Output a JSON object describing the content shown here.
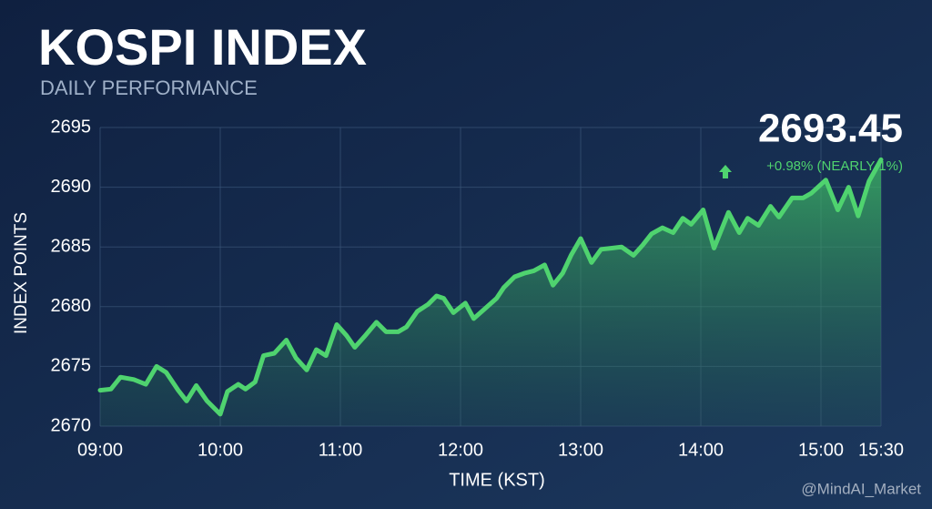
{
  "chart_data": {
    "type": "line",
    "title": "KOSPI INDEX",
    "subtitle": "DAILY PERFORMANCE",
    "y_label": "INDEX POINTS",
    "x_label": "TIME (KST)",
    "annotation": "2693.45",
    "change_label": "+0.98% (NEARLY 1%)",
    "watermark": "@MindAI_Market",
    "xlim": [
      9,
      15.5
    ],
    "xticks": [
      {
        "value": 9,
        "label": "09:00"
      },
      {
        "value": 10,
        "label": "10:00"
      },
      {
        "value": 11,
        "label": "11:00"
      },
      {
        "value": 12,
        "label": "12:00"
      },
      {
        "value": 13,
        "label": "13:00"
      },
      {
        "value": 14,
        "label": "14:00"
      },
      {
        "value": 15,
        "label": "15:00"
      },
      {
        "value": 15.5,
        "label": "15:30"
      }
    ],
    "ylim": [
      2670,
      2695
    ],
    "yticks": [
      2670,
      2675,
      2680,
      2685,
      2690,
      2695
    ],
    "grid": true,
    "series": [
      {
        "name": "KOSPI",
        "color": "#4fd36f",
        "x": [
          9.0,
          9.09,
          9.17,
          9.28,
          9.38,
          9.47,
          9.55,
          9.65,
          9.72,
          9.8,
          9.89,
          10.0,
          10.06,
          10.15,
          10.21,
          10.29,
          10.36,
          10.45,
          10.55,
          10.63,
          10.72,
          10.8,
          10.88,
          10.97,
          11.05,
          11.12,
          11.2,
          11.3,
          11.38,
          11.48,
          11.55,
          11.64,
          11.73,
          11.8,
          11.86,
          11.94,
          12.04,
          12.11,
          12.2,
          12.3,
          12.36,
          12.45,
          12.53,
          12.61,
          12.7,
          12.77,
          12.85,
          12.92,
          13.0,
          13.09,
          13.17,
          13.26,
          13.34,
          13.44,
          13.52,
          13.59,
          13.68,
          13.77,
          13.85,
          13.92,
          14.02,
          14.11,
          14.23,
          14.32,
          14.39,
          14.48,
          14.58,
          14.65,
          14.76,
          14.85,
          14.92,
          15.04,
          15.14,
          15.23,
          15.31,
          15.4,
          15.5
        ],
        "values": [
          2673.0,
          2673.1,
          2674.1,
          2673.9,
          2673.5,
          2675.0,
          2674.5,
          2673.0,
          2672.1,
          2673.4,
          2672.1,
          2671.0,
          2672.9,
          2673.5,
          2673.1,
          2673.7,
          2675.9,
          2676.1,
          2677.2,
          2675.7,
          2674.7,
          2676.4,
          2675.9,
          2678.5,
          2677.6,
          2676.6,
          2677.5,
          2678.7,
          2677.9,
          2677.9,
          2678.3,
          2679.6,
          2680.2,
          2680.9,
          2680.7,
          2679.5,
          2680.3,
          2679.0,
          2679.8,
          2680.7,
          2681.6,
          2682.5,
          2682.8,
          2683.0,
          2683.5,
          2681.8,
          2682.8,
          2684.3,
          2685.7,
          2683.7,
          2684.8,
          2684.9,
          2685.0,
          2684.3,
          2685.2,
          2686.1,
          2686.6,
          2686.2,
          2687.4,
          2686.9,
          2688.1,
          2684.9,
          2687.9,
          2686.2,
          2687.4,
          2686.8,
          2688.4,
          2687.5,
          2689.1,
          2689.1,
          2689.5,
          2690.6,
          2688.1,
          2690.0,
          2687.6,
          2690.5,
          2692.3
        ]
      }
    ]
  }
}
